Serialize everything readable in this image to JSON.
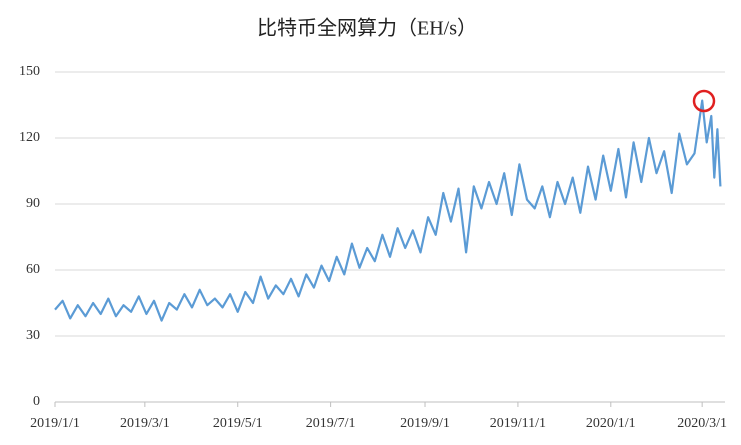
{
  "chart_data": {
    "type": "line",
    "title": "比特币全网算力（EH/s）",
    "x": [
      "2019/1/1",
      "2019/1/6",
      "2019/1/11",
      "2019/1/16",
      "2019/1/21",
      "2019/1/26",
      "2019/1/31",
      "2019/2/5",
      "2019/2/10",
      "2019/2/15",
      "2019/2/20",
      "2019/2/25",
      "2019/3/2",
      "2019/3/7",
      "2019/3/12",
      "2019/3/17",
      "2019/3/22",
      "2019/3/27",
      "2019/4/1",
      "2019/4/6",
      "2019/4/11",
      "2019/4/16",
      "2019/4/21",
      "2019/4/26",
      "2019/5/1",
      "2019/5/6",
      "2019/5/11",
      "2019/5/16",
      "2019/5/21",
      "2019/5/26",
      "2019/5/31",
      "2019/6/5",
      "2019/6/10",
      "2019/6/15",
      "2019/6/20",
      "2019/6/25",
      "2019/6/30",
      "2019/7/5",
      "2019/7/10",
      "2019/7/15",
      "2019/7/20",
      "2019/7/25",
      "2019/7/30",
      "2019/8/4",
      "2019/8/9",
      "2019/8/14",
      "2019/8/19",
      "2019/8/24",
      "2019/8/29",
      "2019/9/3",
      "2019/9/8",
      "2019/9/13",
      "2019/9/18",
      "2019/9/23",
      "2019/9/28",
      "2019/10/3",
      "2019/10/8",
      "2019/10/13",
      "2019/10/18",
      "2019/10/23",
      "2019/10/28",
      "2019/11/2",
      "2019/11/7",
      "2019/11/12",
      "2019/11/17",
      "2019/11/22",
      "2019/11/27",
      "2019/12/2",
      "2019/12/7",
      "2019/12/12",
      "2019/12/17",
      "2019/12/22",
      "2019/12/27",
      "2020/1/1",
      "2020/1/6",
      "2020/1/11",
      "2020/1/16",
      "2020/1/21",
      "2020/1/26",
      "2020/1/31",
      "2020/2/5",
      "2020/2/10",
      "2020/2/15",
      "2020/2/20",
      "2020/2/25",
      "2020/3/1",
      "2020/3/4",
      "2020/3/7",
      "2020/3/9",
      "2020/3/11",
      "2020/3/13"
    ],
    "series": [
      {
        "name": "比特币全网算力",
        "color": "#5b9bd5",
        "values": [
          42,
          46,
          38,
          44,
          39,
          45,
          40,
          47,
          39,
          44,
          41,
          48,
          40,
          46,
          37,
          45,
          42,
          49,
          43,
          51,
          44,
          47,
          43,
          49,
          41,
          50,
          45,
          57,
          47,
          53,
          49,
          56,
          48,
          58,
          52,
          62,
          55,
          66,
          58,
          72,
          61,
          70,
          64,
          76,
          66,
          79,
          70,
          78,
          68,
          84,
          76,
          95,
          82,
          97,
          68,
          98,
          88,
          100,
          90,
          104,
          85,
          108,
          92,
          88,
          98,
          84,
          100,
          90,
          102,
          86,
          107,
          92,
          112,
          96,
          115,
          93,
          118,
          100,
          120,
          104,
          114,
          95,
          122,
          108,
          113,
          137,
          118,
          130,
          102,
          124,
          98
        ]
      }
    ],
    "xlim": [
      "2019/1/1",
      "2020/3/16"
    ],
    "xticks": [
      "2019/1/1",
      "2019/3/1",
      "2019/5/1",
      "2019/7/1",
      "2019/9/1",
      "2019/11/1",
      "2020/1/1",
      "2020/3/1"
    ],
    "ylim": [
      0,
      150
    ],
    "yticks": [
      0,
      30,
      60,
      90,
      120,
      150
    ],
    "grid": true
  }
}
